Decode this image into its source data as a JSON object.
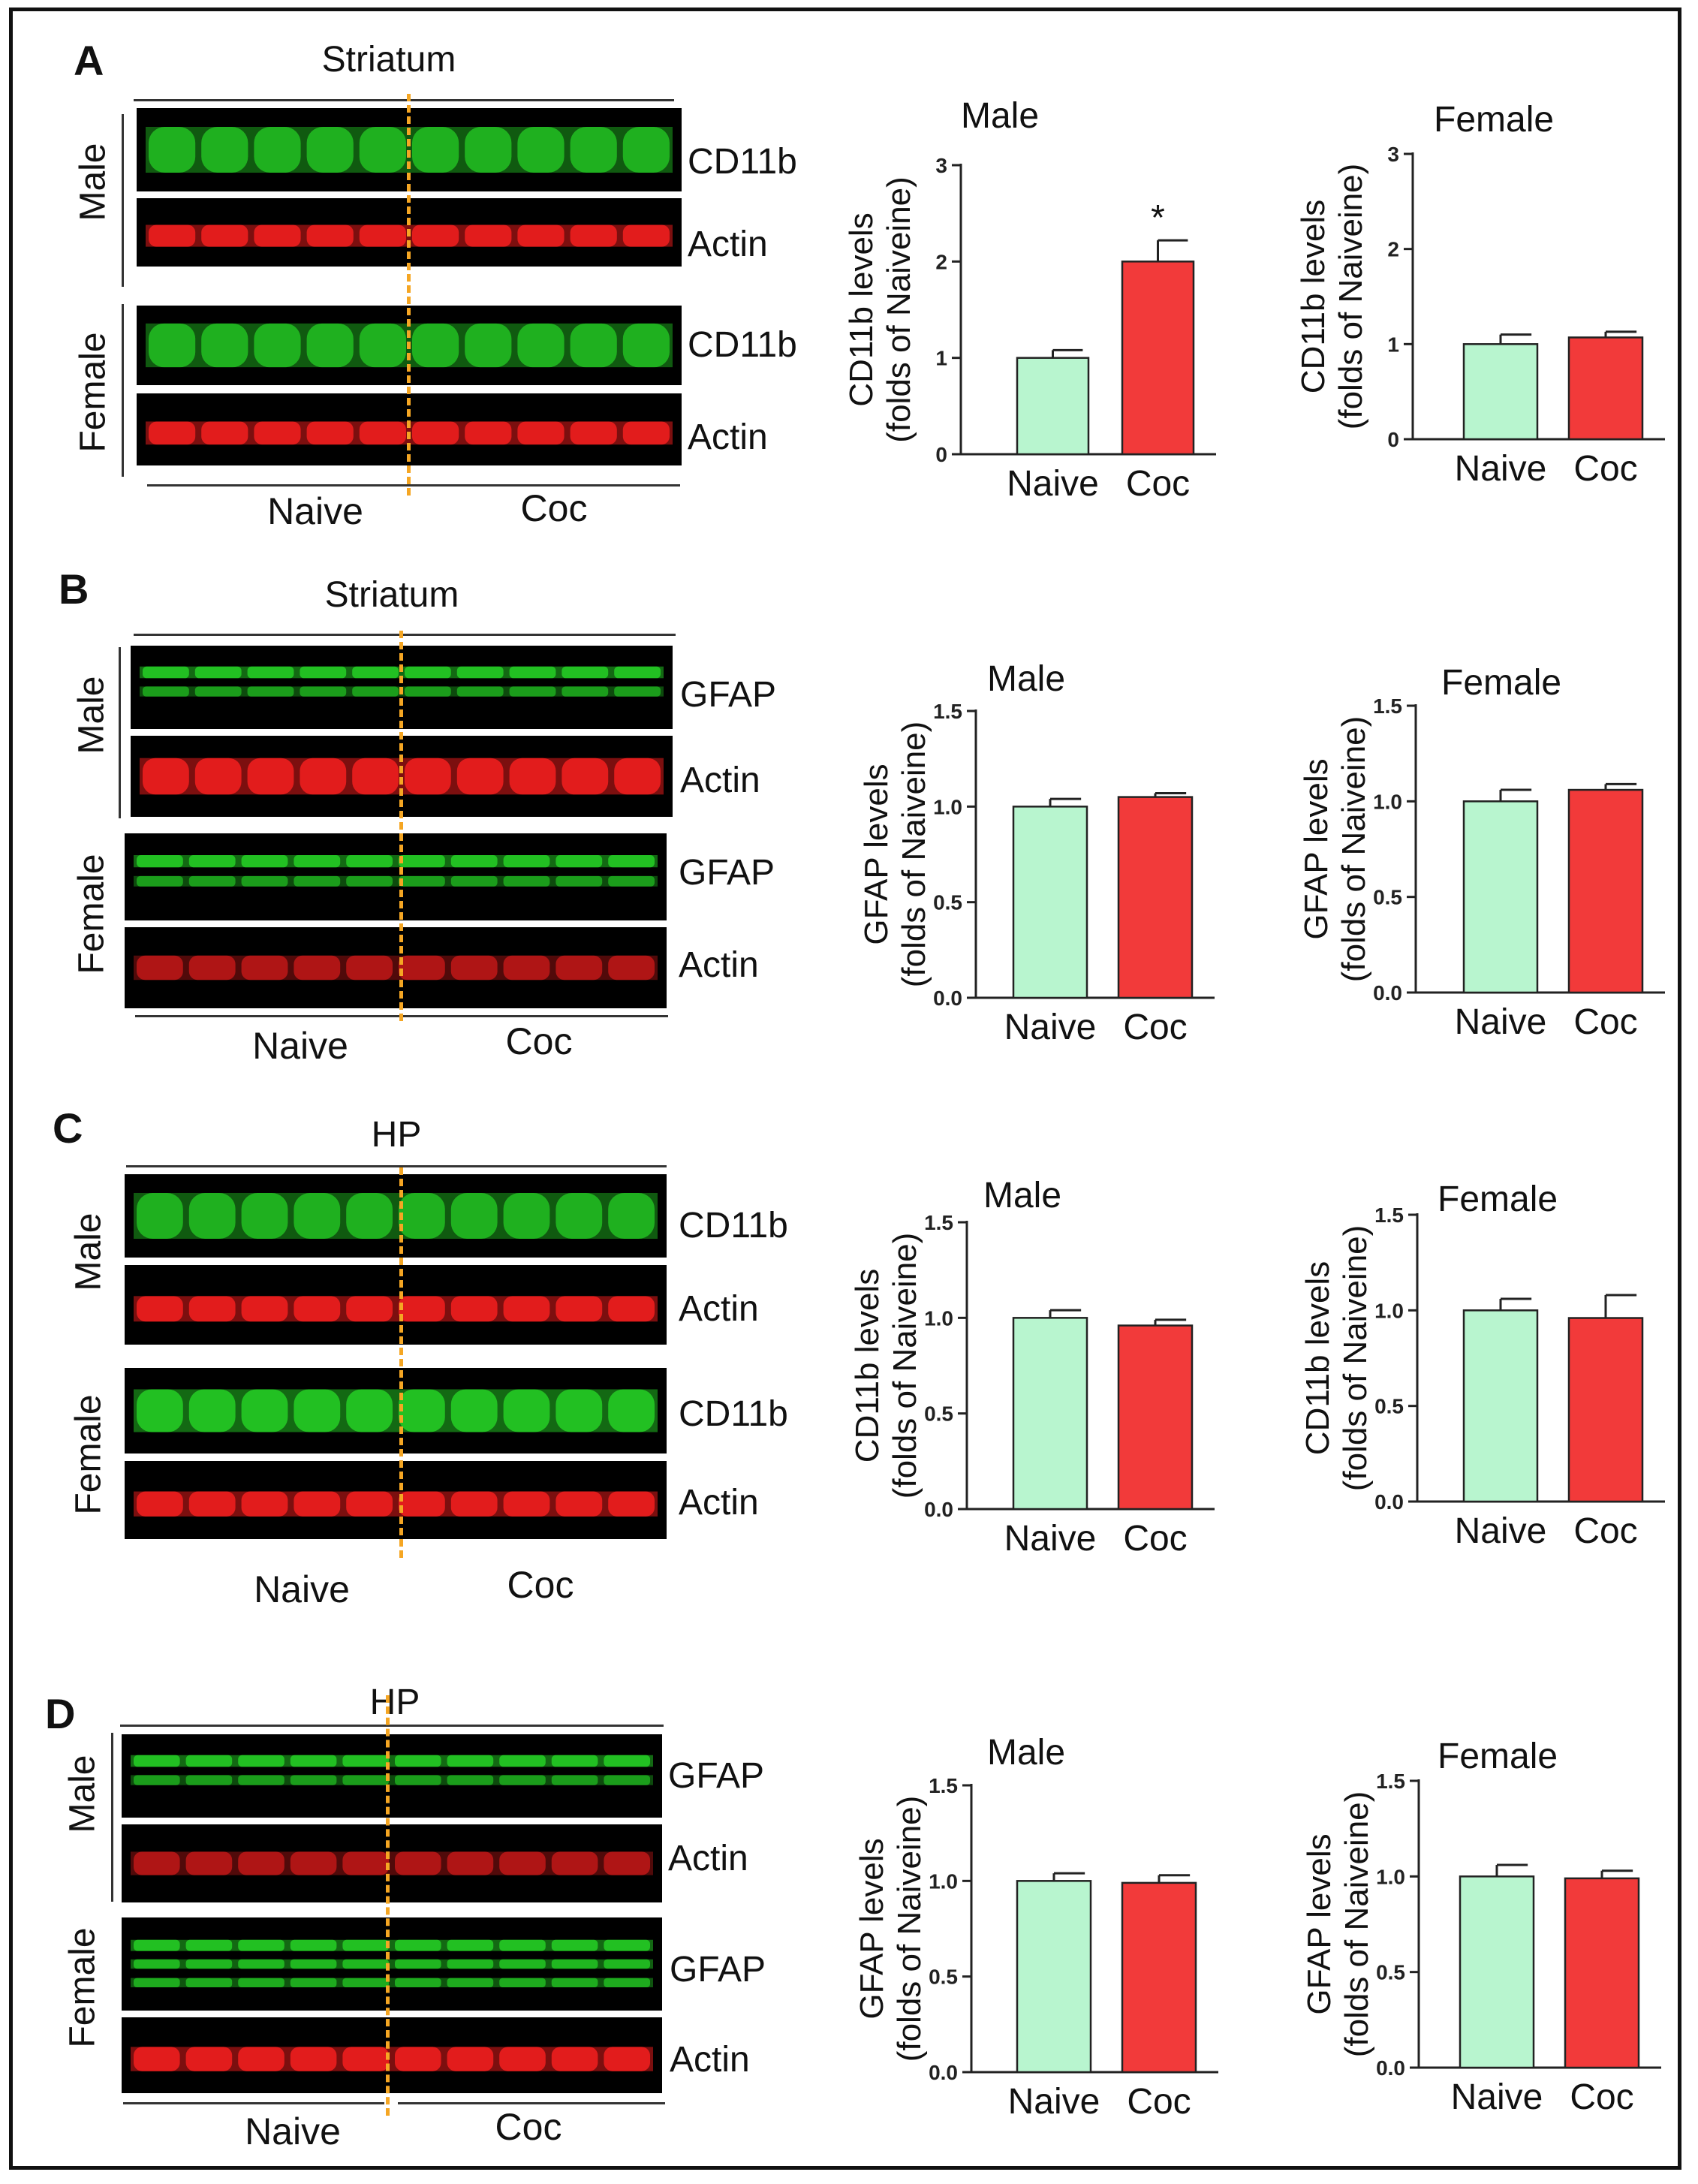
{
  "colors": {
    "naive_bar": "#b8f5cf",
    "coc_bar": "#f23a3a",
    "dash": "#f5a623",
    "green_band": "#22c022",
    "red_band": "#e21c1c"
  },
  "panels": [
    {
      "letter": "A",
      "region": "Striatum",
      "marker": "CD11b",
      "loading": "Actin",
      "sexes": [
        "Male",
        "Female"
      ],
      "groups": [
        "Naive",
        "Coc"
      ]
    },
    {
      "letter": "B",
      "region": "Striatum",
      "marker": "GFAP",
      "loading": "Actin",
      "sexes": [
        "Male",
        "Female"
      ],
      "groups": [
        "Naive",
        "Coc"
      ]
    },
    {
      "letter": "C",
      "region": "HP",
      "marker": "CD11b",
      "loading": "Actin",
      "sexes": [
        "Male",
        "Female"
      ],
      "groups": [
        "Naive",
        "Coc"
      ]
    },
    {
      "letter": "D",
      "region": "HP",
      "marker": "GFAP",
      "loading": "Actin",
      "sexes": [
        "Male",
        "Female"
      ],
      "groups": [
        "Naive",
        "Coc"
      ]
    }
  ],
  "chart_data": [
    {
      "type": "bar",
      "panel": "A",
      "title": "Male",
      "categories": [
        "Naive",
        "Coc"
      ],
      "values": [
        1.0,
        2.0
      ],
      "errors": [
        0.08,
        0.22
      ],
      "annotations": [
        "",
        "*"
      ],
      "ylabel_line1": "CD11b levels",
      "ylabel_line2": "(folds of Naiveine)",
      "ylim": [
        0,
        3
      ],
      "yticks": [
        "0",
        "1",
        "2",
        "3"
      ]
    },
    {
      "type": "bar",
      "panel": "A",
      "title": "Female",
      "categories": [
        "Naive",
        "Coc"
      ],
      "values": [
        1.0,
        1.07
      ],
      "errors": [
        0.1,
        0.06
      ],
      "annotations": [
        "",
        ""
      ],
      "ylabel_line1": "CD11b levels",
      "ylabel_line2": "(folds of Naiveine)",
      "ylim": [
        0,
        3
      ],
      "yticks": [
        "0",
        "1",
        "2",
        "3"
      ]
    },
    {
      "type": "bar",
      "panel": "B",
      "title": "Male",
      "categories": [
        "Naive",
        "Coc"
      ],
      "values": [
        1.0,
        1.05
      ],
      "errors": [
        0.04,
        0.02
      ],
      "annotations": [
        "",
        ""
      ],
      "ylabel_line1": "GFAP levels",
      "ylabel_line2": "(folds of Naiveine)",
      "ylim": [
        0,
        1.5
      ],
      "yticks": [
        "0.0",
        "0.5",
        "1.0",
        "1.5"
      ]
    },
    {
      "type": "bar",
      "panel": "B",
      "title": "Female",
      "categories": [
        "Naive",
        "Coc"
      ],
      "values": [
        1.0,
        1.06
      ],
      "errors": [
        0.06,
        0.03
      ],
      "annotations": [
        "",
        ""
      ],
      "ylabel_line1": "GFAP levels",
      "ylabel_line2": "(folds of Naiveine)",
      "ylim": [
        0,
        1.5
      ],
      "yticks": [
        "0.0",
        "0.5",
        "1.0",
        "1.5"
      ]
    },
    {
      "type": "bar",
      "panel": "C",
      "title": "Male",
      "categories": [
        "Naive",
        "Coc"
      ],
      "values": [
        1.0,
        0.96
      ],
      "errors": [
        0.04,
        0.03
      ],
      "annotations": [
        "",
        ""
      ],
      "ylabel_line1": "CD11b levels",
      "ylabel_line2": "(folds of Naiveine)",
      "ylim": [
        0,
        1.5
      ],
      "yticks": [
        "0.0",
        "0.5",
        "1.0",
        "1.5"
      ]
    },
    {
      "type": "bar",
      "panel": "C",
      "title": "Female",
      "categories": [
        "Naive",
        "Coc"
      ],
      "values": [
        1.0,
        0.96
      ],
      "errors": [
        0.06,
        0.12
      ],
      "annotations": [
        "",
        ""
      ],
      "ylabel_line1": "CD11b levels",
      "ylabel_line2": "(folds of Naiveine)",
      "ylim": [
        0,
        1.5
      ],
      "yticks": [
        "0.0",
        "0.5",
        "1.0",
        "1.5"
      ]
    },
    {
      "type": "bar",
      "panel": "D",
      "title": "Male",
      "categories": [
        "Naive",
        "Coc"
      ],
      "values": [
        1.0,
        0.99
      ],
      "errors": [
        0.04,
        0.04
      ],
      "annotations": [
        "",
        ""
      ],
      "ylabel_line1": "GFAP levels",
      "ylabel_line2": "(folds of Naiveine)",
      "ylim": [
        0,
        1.5
      ],
      "yticks": [
        "0.0",
        "0.5",
        "1.0",
        "1.5"
      ]
    },
    {
      "type": "bar",
      "panel": "D",
      "title": "Female",
      "categories": [
        "Naive",
        "Coc"
      ],
      "values": [
        1.0,
        0.99
      ],
      "errors": [
        0.06,
        0.04
      ],
      "annotations": [
        "",
        ""
      ],
      "ylabel_line1": "GFAP levels",
      "ylabel_line2": "(folds of Naiveine)",
      "ylim": [
        0,
        1.5
      ],
      "yticks": [
        "0.0",
        "0.5",
        "1.0",
        "1.5"
      ]
    }
  ]
}
